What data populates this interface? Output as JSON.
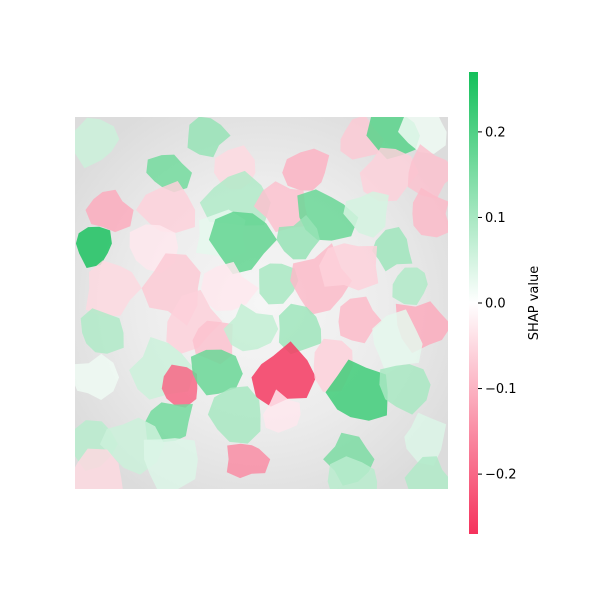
{
  "chart_data": {
    "type": "heatmap",
    "title": "",
    "colorbar": {
      "label": "SHAP value",
      "vmin": -0.27,
      "vmax": 0.27,
      "ticks": [
        0.2,
        0.1,
        0.0,
        -0.1,
        -0.2
      ],
      "tick_labels": [
        "0.2",
        "0.1",
        "0.0",
        "−0.1",
        "−0.2"
      ],
      "colors": {
        "negative": "#f5325c",
        "zero": "#ffffff",
        "positive": "#13c05a"
      }
    },
    "background": "grayscale image",
    "grid": false,
    "superpixels": [
      {
        "cx": 0.05,
        "cy": 0.06,
        "value": 0.06
      },
      {
        "cx": 0.35,
        "cy": 0.05,
        "value": 0.12
      },
      {
        "cx": 0.76,
        "cy": 0.06,
        "value": -0.07
      },
      {
        "cx": 0.86,
        "cy": 0.05,
        "value": 0.19
      },
      {
        "cx": 0.94,
        "cy": 0.04,
        "value": 0.02
      },
      {
        "cx": 0.25,
        "cy": 0.15,
        "value": 0.16
      },
      {
        "cx": 0.43,
        "cy": 0.15,
        "value": -0.05
      },
      {
        "cx": 0.62,
        "cy": 0.15,
        "value": -0.1
      },
      {
        "cx": 0.84,
        "cy": 0.15,
        "value": -0.06
      },
      {
        "cx": 0.95,
        "cy": 0.15,
        "value": -0.08
      },
      {
        "cx": 0.09,
        "cy": 0.25,
        "value": -0.11
      },
      {
        "cx": 0.25,
        "cy": 0.25,
        "value": -0.06
      },
      {
        "cx": 0.43,
        "cy": 0.23,
        "value": 0.09
      },
      {
        "cx": 0.56,
        "cy": 0.24,
        "value": -0.08
      },
      {
        "cx": 0.67,
        "cy": 0.27,
        "value": 0.17
      },
      {
        "cx": 0.78,
        "cy": 0.26,
        "value": 0.05
      },
      {
        "cx": 0.95,
        "cy": 0.26,
        "value": -0.09
      },
      {
        "cx": 0.05,
        "cy": 0.34,
        "value": 0.26
      },
      {
        "cx": 0.21,
        "cy": 0.35,
        "value": -0.03
      },
      {
        "cx": 0.39,
        "cy": 0.32,
        "value": 0.03
      },
      {
        "cx": 0.45,
        "cy": 0.33,
        "value": 0.18
      },
      {
        "cx": 0.6,
        "cy": 0.33,
        "value": 0.12
      },
      {
        "cx": 0.85,
        "cy": 0.36,
        "value": 0.11
      },
      {
        "cx": 0.1,
        "cy": 0.46,
        "value": -0.05
      },
      {
        "cx": 0.27,
        "cy": 0.46,
        "value": -0.07
      },
      {
        "cx": 0.4,
        "cy": 0.46,
        "value": -0.03
      },
      {
        "cx": 0.54,
        "cy": 0.44,
        "value": 0.1
      },
      {
        "cx": 0.66,
        "cy": 0.44,
        "value": -0.09
      },
      {
        "cx": 0.74,
        "cy": 0.4,
        "value": -0.06
      },
      {
        "cx": 0.9,
        "cy": 0.45,
        "value": 0.09
      },
      {
        "cx": 0.07,
        "cy": 0.58,
        "value": 0.09
      },
      {
        "cx": 0.31,
        "cy": 0.55,
        "value": -0.06
      },
      {
        "cx": 0.37,
        "cy": 0.6,
        "value": -0.08
      },
      {
        "cx": 0.47,
        "cy": 0.57,
        "value": 0.07
      },
      {
        "cx": 0.6,
        "cy": 0.57,
        "value": 0.11
      },
      {
        "cx": 0.76,
        "cy": 0.55,
        "value": -0.09
      },
      {
        "cx": 0.93,
        "cy": 0.56,
        "value": -0.11
      },
      {
        "cx": 0.86,
        "cy": 0.61,
        "value": 0.03
      },
      {
        "cx": 0.05,
        "cy": 0.7,
        "value": 0.02
      },
      {
        "cx": 0.23,
        "cy": 0.68,
        "value": 0.06
      },
      {
        "cx": 0.28,
        "cy": 0.73,
        "value": -0.2
      },
      {
        "cx": 0.37,
        "cy": 0.69,
        "value": 0.17
      },
      {
        "cx": 0.55,
        "cy": 0.7,
        "value": -0.26
      },
      {
        "cx": 0.69,
        "cy": 0.67,
        "value": -0.06
      },
      {
        "cx": 0.76,
        "cy": 0.74,
        "value": 0.22
      },
      {
        "cx": 0.88,
        "cy": 0.72,
        "value": 0.1
      },
      {
        "cx": 0.25,
        "cy": 0.82,
        "value": 0.16
      },
      {
        "cx": 0.44,
        "cy": 0.8,
        "value": 0.1
      },
      {
        "cx": 0.56,
        "cy": 0.8,
        "value": -0.03
      },
      {
        "cx": 0.05,
        "cy": 0.88,
        "value": 0.08
      },
      {
        "cx": 0.15,
        "cy": 0.88,
        "value": 0.06
      },
      {
        "cx": 0.25,
        "cy": 0.92,
        "value": 0.04
      },
      {
        "cx": 0.46,
        "cy": 0.92,
        "value": -0.15
      },
      {
        "cx": 0.74,
        "cy": 0.92,
        "value": 0.15
      },
      {
        "cx": 0.94,
        "cy": 0.86,
        "value": 0.04
      },
      {
        "cx": 0.06,
        "cy": 0.97,
        "value": -0.05
      },
      {
        "cx": 0.75,
        "cy": 0.98,
        "value": 0.08
      },
      {
        "cx": 0.95,
        "cy": 0.97,
        "value": 0.09
      }
    ]
  }
}
